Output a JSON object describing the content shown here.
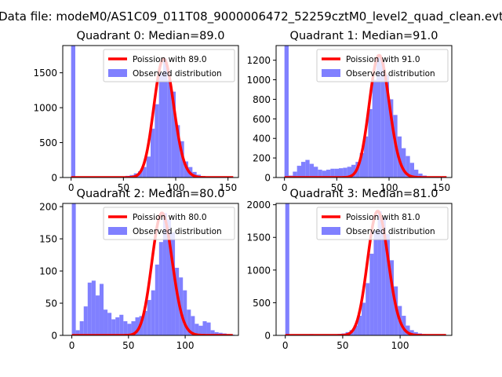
{
  "figure": {
    "suptitle": "Data file: modeM0/AS1C09_011T08_9000006472_52259cztM0_level2_quad_clean.evt"
  },
  "colors": {
    "poisson": "#ff0000",
    "observed": "#8080ff",
    "axis": "#000000"
  },
  "chart_data": [
    {
      "type": "bar",
      "quadrant": 0,
      "title": "Quadrant 0: Median=89.0",
      "median": 89.0,
      "xlim": [
        -8,
        160
      ],
      "ylim": [
        0,
        1890
      ],
      "xticks": [
        0,
        50,
        100,
        150
      ],
      "yticks": [
        0,
        500,
        1000,
        1500
      ],
      "bin_width": 4,
      "hist_bins": [
        [
          0,
          1890
        ],
        [
          4,
          12
        ],
        [
          8,
          10
        ],
        [
          12,
          14
        ],
        [
          16,
          16
        ],
        [
          20,
          12
        ],
        [
          24,
          10
        ],
        [
          28,
          14
        ],
        [
          32,
          12
        ],
        [
          36,
          10
        ],
        [
          40,
          8
        ],
        [
          44,
          12
        ],
        [
          48,
          16
        ],
        [
          52,
          24
        ],
        [
          56,
          36
        ],
        [
          60,
          60
        ],
        [
          64,
          90
        ],
        [
          68,
          150
        ],
        [
          72,
          300
        ],
        [
          76,
          700
        ],
        [
          80,
          1050
        ],
        [
          84,
          1500
        ],
        [
          88,
          1700
        ],
        [
          92,
          1400
        ],
        [
          96,
          1230
        ],
        [
          100,
          750
        ],
        [
          104,
          520
        ],
        [
          108,
          230
        ],
        [
          112,
          150
        ],
        [
          116,
          80
        ],
        [
          120,
          40
        ],
        [
          124,
          20
        ],
        [
          128,
          10
        ],
        [
          132,
          6
        ],
        [
          136,
          4
        ],
        [
          140,
          2
        ]
      ],
      "legend": [
        "Poission with 89.0",
        "Observed distribution"
      ]
    },
    {
      "type": "bar",
      "quadrant": 1,
      "title": "Quadrant 1: Median=91.0",
      "median": 91.0,
      "xlim": [
        -8,
        160
      ],
      "ylim": [
        0,
        1350
      ],
      "xticks": [
        0,
        50,
        100,
        150
      ],
      "yticks": [
        0,
        200,
        400,
        600,
        800,
        1000,
        1200
      ],
      "bin_width": 4,
      "hist_bins": [
        [
          0,
          1350
        ],
        [
          4,
          20
        ],
        [
          8,
          60
        ],
        [
          12,
          120
        ],
        [
          16,
          160
        ],
        [
          20,
          180
        ],
        [
          24,
          140
        ],
        [
          28,
          110
        ],
        [
          32,
          80
        ],
        [
          36,
          70
        ],
        [
          40,
          80
        ],
        [
          44,
          90
        ],
        [
          48,
          90
        ],
        [
          52,
          95
        ],
        [
          56,
          100
        ],
        [
          60,
          110
        ],
        [
          64,
          130
        ],
        [
          68,
          160
        ],
        [
          72,
          250
        ],
        [
          76,
          420
        ],
        [
          80,
          700
        ],
        [
          84,
          1000
        ],
        [
          88,
          1250
        ],
        [
          92,
          1180
        ],
        [
          96,
          1050
        ],
        [
          100,
          800
        ],
        [
          104,
          640
        ],
        [
          108,
          420
        ],
        [
          112,
          300
        ],
        [
          116,
          220
        ],
        [
          120,
          150
        ],
        [
          124,
          80
        ],
        [
          128,
          40
        ],
        [
          132,
          20
        ],
        [
          136,
          10
        ],
        [
          140,
          6
        ],
        [
          144,
          3
        ]
      ],
      "legend": [
        "Poission with 91.0",
        "Observed distribution"
      ]
    },
    {
      "type": "bar",
      "quadrant": 2,
      "title": "Quadrant 2: Median=80.0",
      "median": 80.0,
      "xlim": [
        -8,
        147
      ],
      "ylim": [
        0,
        205
      ],
      "xticks": [
        0,
        50,
        100
      ],
      "yticks": [
        0,
        50,
        100,
        150,
        200
      ],
      "bin_width": 3.5,
      "hist_bins": [
        [
          0,
          205
        ],
        [
          3.5,
          8
        ],
        [
          7,
          22
        ],
        [
          10.5,
          45
        ],
        [
          14,
          82
        ],
        [
          17.5,
          85
        ],
        [
          21,
          62
        ],
        [
          24.5,
          80
        ],
        [
          28,
          40
        ],
        [
          31.5,
          35
        ],
        [
          35,
          25
        ],
        [
          38.5,
          28
        ],
        [
          42,
          32
        ],
        [
          45.5,
          22
        ],
        [
          49,
          18
        ],
        [
          52.5,
          22
        ],
        [
          56,
          28
        ],
        [
          59.5,
          30
        ],
        [
          63,
          38
        ],
        [
          66.5,
          55
        ],
        [
          70,
          70
        ],
        [
          73.5,
          110
        ],
        [
          77,
          145
        ],
        [
          80.5,
          190
        ],
        [
          84,
          180
        ],
        [
          87.5,
          160
        ],
        [
          91,
          105
        ],
        [
          94.5,
          90
        ],
        [
          98,
          70
        ],
        [
          101.5,
          40
        ],
        [
          105,
          30
        ],
        [
          108.5,
          18
        ],
        [
          112,
          15
        ],
        [
          115.5,
          22
        ],
        [
          119,
          20
        ],
        [
          122.5,
          8
        ],
        [
          126,
          5
        ],
        [
          129.5,
          4
        ],
        [
          133,
          3
        ],
        [
          136.5,
          2
        ],
        [
          140,
          1
        ]
      ],
      "legend": [
        "Poission with 80.0",
        "Observed distribution"
      ]
    },
    {
      "type": "bar",
      "quadrant": 3,
      "title": "Quadrant 3: Median=81.0",
      "median": 81.0,
      "xlim": [
        -8,
        145
      ],
      "ylim": [
        0,
        2020
      ],
      "xticks": [
        0,
        50,
        100
      ],
      "yticks": [
        0,
        500,
        1000,
        1500,
        2000
      ],
      "bin_width": 3.5,
      "hist_bins": [
        [
          0,
          2020
        ],
        [
          3.5,
          10
        ],
        [
          7,
          12
        ],
        [
          10.5,
          14
        ],
        [
          14,
          10
        ],
        [
          17.5,
          12
        ],
        [
          21,
          20
        ],
        [
          24.5,
          10
        ],
        [
          28,
          8
        ],
        [
          31.5,
          12
        ],
        [
          35,
          10
        ],
        [
          38.5,
          14
        ],
        [
          42,
          16
        ],
        [
          45.5,
          22
        ],
        [
          49,
          30
        ],
        [
          52.5,
          50
        ],
        [
          56,
          80
        ],
        [
          59.5,
          150
        ],
        [
          63,
          300
        ],
        [
          66.5,
          500
        ],
        [
          70,
          800
        ],
        [
          73.5,
          1250
        ],
        [
          77,
          1600
        ],
        [
          80.5,
          1900
        ],
        [
          84,
          1800
        ],
        [
          87.5,
          1550
        ],
        [
          91,
          1150
        ],
        [
          94.5,
          750
        ],
        [
          98,
          450
        ],
        [
          101.5,
          300
        ],
        [
          105,
          150
        ],
        [
          108.5,
          80
        ],
        [
          112,
          50
        ],
        [
          115.5,
          30
        ],
        [
          119,
          20
        ],
        [
          122.5,
          10
        ],
        [
          126,
          6
        ],
        [
          129.5,
          4
        ],
        [
          133,
          2
        ]
      ],
      "legend": [
        "Poission with 81.0",
        "Observed distribution"
      ]
    }
  ]
}
